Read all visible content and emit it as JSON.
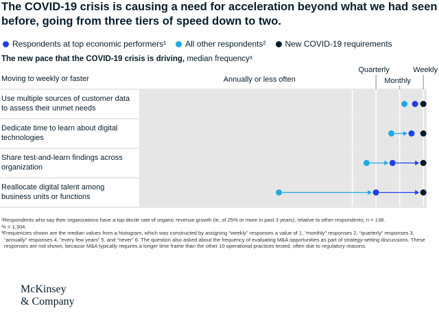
{
  "header": {
    "title": "The COVID-19 crisis is causing a need for acceleration beyond what we had seen before, going from three tiers of speed down to two.",
    "subtitle_bold": "The new pace that the COVID-19 crisis is driving,",
    "subtitle": "median frequency³"
  },
  "chart_data": {
    "type": "dot",
    "column_header": "Moving to weekly or faster",
    "categories": [
      "Use multiple sources of customer data to assess their unmet needs",
      "Dedicate time to learn about digital technologies",
      "Share test-and-learn findings across organization",
      "Reallocate digital talent among business units or functions"
    ],
    "series": [
      {
        "name": "Respondents at top economic performers¹",
        "color": "#1f40e6",
        "values": [
          1.35,
          1.5,
          2.3,
          3.0
        ]
      },
      {
        "name": "All other respondents²",
        "color": "#1fa9e6",
        "values": [
          1.8,
          2.35,
          3.4,
          7.1
        ]
      },
      {
        "name": "New COVID-19 requirements",
        "color": "#051c2c",
        "values": [
          1,
          1,
          1,
          1
        ]
      }
    ],
    "xlim": [
      13,
      0.86
    ],
    "xticks": [
      {
        "value": 4,
        "label": "Annually or less often"
      },
      {
        "value": 3,
        "label": "Quarterly"
      },
      {
        "value": 2,
        "label": "Monthly"
      },
      {
        "value": 1,
        "label": "Weekly"
      }
    ]
  },
  "footnotes": [
    "¹Respondents who say their organizations have a top-decile rate of organic revenue growth (ie, of 25% or more in past 3 years), relative to other respondents; n = 138.",
    "²n = 1,304.",
    "³Frequencies shown are the median values from a histogram, which was constructed by assigning “weekly” responses a value of 1, “monthly” responses 2, “quarterly” responses 3, “annually” responses 4, “every few years” 5, and “never” 6. The question also asked about the frequency of evaluating M&A opportunities as part of strategy-setting discussions. These responses are not shown, because M&A typically requires a longer time frame than the other 10 operational practices tested, often due to regulatory reasons."
  ],
  "logo": [
    "McKinsey",
    "& Company"
  ]
}
